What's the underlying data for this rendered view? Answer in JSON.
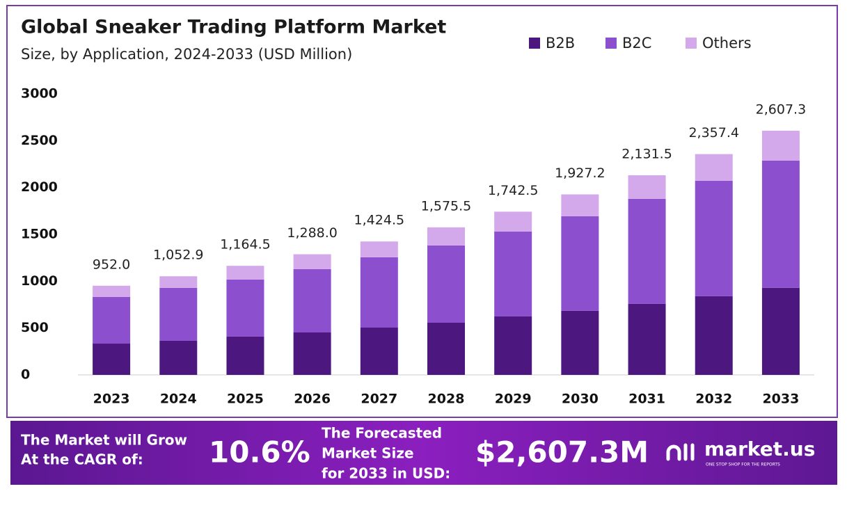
{
  "chart_data": {
    "type": "stacked-bar",
    "title": "Global Sneaker Trading Platform Market",
    "subtitle": "Size, by Application, 2024-2033 (USD Million)",
    "categories": [
      "2023",
      "2024",
      "2025",
      "2026",
      "2027",
      "2028",
      "2029",
      "2030",
      "2031",
      "2032",
      "2033"
    ],
    "series": [
      {
        "name": "B2B",
        "color": "#4c177f",
        "values": [
          334,
          364,
          409,
          453,
          505,
          557,
          624,
          684,
          758,
          840,
          929
        ]
      },
      {
        "name": "B2C",
        "color": "#8c50cf",
        "values": [
          498,
          565,
          609,
          676,
          751,
          825,
          907,
          1010,
          1122,
          1233,
          1359
        ]
      },
      {
        "name": "Others",
        "color": "#d4a9ec",
        "values": [
          120,
          124,
          146.5,
          159,
          168.5,
          193.5,
          211.5,
          233.2,
          251.5,
          284.4,
          319.3
        ]
      }
    ],
    "totals": [
      952,
      1052.9,
      1164.5,
      1288,
      1424.5,
      1575.5,
      1742.5,
      1927.2,
      2131.5,
      2357.4,
      2607.3
    ],
    "value_labels": [
      "952.0",
      "1,052.9",
      "1,164.5",
      "1,288.0",
      "1,424.5",
      "1,575.5",
      "1,742.5",
      "1,927.2",
      "2,131.5",
      "2,357.4",
      "2,607.3"
    ],
    "ylim": [
      0,
      3000
    ],
    "yticks": [
      0,
      500,
      1000,
      1500,
      2000,
      2500,
      3000
    ],
    "legend": "top-right"
  },
  "footer": {
    "cagr_text": [
      "The Market will Grow",
      "At the CAGR of:"
    ],
    "cagr_value": "10.6%",
    "forecast_text": [
      "The Forecasted",
      "Market Size",
      "for 2033 in USD:"
    ],
    "forecast_value": "$2,607.3M",
    "brand": "market.us",
    "tagline": "ONE STOP SHOP FOR THE REPORTS"
  }
}
